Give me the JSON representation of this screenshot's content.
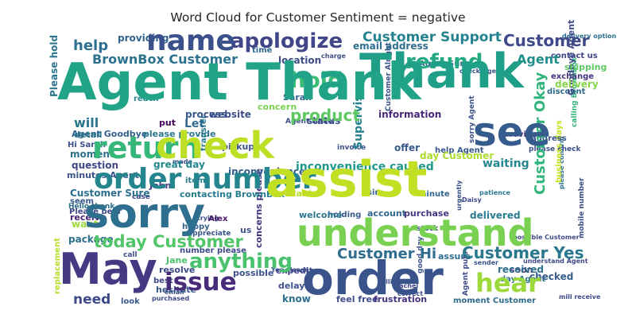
{
  "chart_data": {
    "type": "wordcloud",
    "title": "Word Cloud for Customer Sentiment = negative",
    "words": [
      {
        "text": "Agent Thank",
        "color": "#20a386"
      },
      {
        "text": "assist",
        "color": "#c2df23"
      },
      {
        "text": "check",
        "color": "#bddf26"
      },
      {
        "text": "sorry",
        "color": "#2e6e8e"
      },
      {
        "text": "order",
        "color": "#3a538b"
      },
      {
        "text": "May",
        "color": "#443a83"
      },
      {
        "text": "name",
        "color": "#3b518b"
      },
      {
        "text": "order number",
        "color": "#25858e"
      },
      {
        "text": "understand",
        "color": "#7ad151"
      },
      {
        "text": "Thank",
        "color": "#1f9f88"
      },
      {
        "text": "see",
        "color": "#365c8d"
      },
      {
        "text": "return",
        "color": "#35b779"
      },
      {
        "text": "apologize",
        "color": "#404688"
      },
      {
        "text": "refund",
        "color": "#24aa83"
      },
      {
        "text": "hold",
        "color": "#3bbb75"
      },
      {
        "text": "issue",
        "color": "#472c7a"
      },
      {
        "text": "anything",
        "color": "#4ac16d"
      },
      {
        "text": "hear",
        "color": "#9dd93b"
      },
      {
        "text": "today Customer",
        "color": "#52c569"
      },
      {
        "text": "Customer Support",
        "color": "#26828e"
      },
      {
        "text": "Customer",
        "color": "#3e4989"
      },
      {
        "text": "BrownBox Customer",
        "color": "#2c728e"
      },
      {
        "text": "Customer Hi",
        "color": "#2e6d8e"
      },
      {
        "text": "Customer Yes",
        "color": "#2a788e"
      },
      {
        "text": "help",
        "color": "#2d708e"
      },
      {
        "text": "Agent",
        "color": "#21908d"
      },
      {
        "text": "Let",
        "color": "#31688e"
      },
      {
        "text": "will",
        "color": "#2c738e"
      },
      {
        "text": "need",
        "color": "#3e4a89"
      },
      {
        "text": "product",
        "color": "#5ec962"
      },
      {
        "text": "Customer Okay",
        "color": "#31b57b"
      },
      {
        "text": "inconvenience caused",
        "color": "#1f988b"
      },
      {
        "text": "Goodbye Agent",
        "color": "#3e4c8a"
      },
      {
        "text": "email address",
        "color": "#2e6e8e"
      },
      {
        "text": "providing",
        "color": "#32648e"
      },
      {
        "text": "location",
        "color": "#3d4d8a"
      },
      {
        "text": "Please hold",
        "color": "#2b758e"
      },
      {
        "text": "Sarah",
        "color": "#34608d"
      },
      {
        "text": "Hi Sarah",
        "color": "#3b518b"
      },
      {
        "text": "Agent Goodbye",
        "color": "#355f8d"
      },
      {
        "text": "please provide",
        "color": "#2a778e"
      },
      {
        "text": "great day",
        "color": "#23888e"
      },
      {
        "text": "process",
        "color": "#38598c"
      },
      {
        "text": "website",
        "color": "#3c4f8a"
      },
      {
        "text": "information",
        "color": "#482878"
      },
      {
        "text": "put",
        "color": "#440154"
      },
      {
        "text": "status",
        "color": "#3c4f8a"
      },
      {
        "text": "Supervisor",
        "color": "#26818e"
      },
      {
        "text": "concern",
        "color": "#7ad151"
      },
      {
        "text": "delivery",
        "color": "#86d549"
      },
      {
        "text": "discount",
        "color": "#2f6b8e"
      },
      {
        "text": "exchange",
        "color": "#46327e"
      },
      {
        "text": "shipping",
        "color": "#5ec962"
      },
      {
        "text": "moment",
        "color": "#2c728e"
      },
      {
        "text": "question",
        "color": "#3f4788"
      },
      {
        "text": "inconvenience",
        "color": "#355e8d"
      },
      {
        "text": "Customer Sure",
        "color": "#2d708e"
      },
      {
        "text": "John",
        "color": "#443a83"
      },
      {
        "text": "available",
        "color": "#b5de2b"
      },
      {
        "text": "welcome",
        "color": "#2a768e"
      },
      {
        "text": "account",
        "color": "#31678e"
      },
      {
        "text": "purchase",
        "color": "#453581"
      },
      {
        "text": "delivered",
        "color": "#287d8e"
      },
      {
        "text": "receive",
        "color": "#482173"
      },
      {
        "text": "want",
        "color": "#9fda3a"
      },
      {
        "text": "package",
        "color": "#2d708e"
      },
      {
        "text": "Alex",
        "color": "#481769"
      },
      {
        "text": "Jane",
        "color": "#4ac16d"
      },
      {
        "text": "detail",
        "color": "#2b758e"
      },
      {
        "text": "offer",
        "color": "#38598c"
      },
      {
        "text": "day Customer",
        "color": "#addc30"
      },
      {
        "text": "received",
        "color": "#2e6f8e"
      },
      {
        "text": "checked",
        "color": "#365d8d"
      },
      {
        "text": "soon",
        "color": "#472d7b"
      },
      {
        "text": "day Agent",
        "color": "#2c728e"
      },
      {
        "text": "know",
        "color": "#2e6e8e"
      },
      {
        "text": "feel free",
        "color": "#3d4e8a"
      },
      {
        "text": "frustration",
        "color": "#46307e"
      },
      {
        "text": "moment Customer",
        "color": "#2e6d8e"
      },
      {
        "text": "resolve",
        "color": "#3e4989"
      },
      {
        "text": "possible",
        "color": "#3b518b"
      },
      {
        "text": "delay",
        "color": "#3b528b"
      },
      {
        "text": "expedite",
        "color": "#404688"
      },
      {
        "text": "concerns please",
        "color": "#46337f"
      },
      {
        "text": "holding",
        "color": "#38598c"
      },
      {
        "text": "waiting",
        "color": "#24868e"
      },
      {
        "text": "contacting BrownBox",
        "color": "#287c8e"
      },
      {
        "text": "mobile number",
        "color": "#3d4d8a"
      },
      {
        "text": "business days",
        "color": "#c8e020"
      },
      {
        "text": "pickup",
        "color": "#3b528b"
      },
      {
        "text": "minutes Agent",
        "color": "#3a538b"
      },
      {
        "text": "item",
        "color": "#277e8e"
      },
      {
        "text": "hesitate",
        "color": "#38588c"
      },
      {
        "text": "best",
        "color": "#3e4989"
      },
      {
        "text": "look",
        "color": "#38598c"
      },
      {
        "text": "calling BrownBox",
        "color": "#31b57b"
      },
      {
        "text": "reach",
        "color": "#25848e"
      },
      {
        "text": "transfer",
        "color": "#2a788e"
      },
      {
        "text": "assure",
        "color": "#2e6e8e"
      },
      {
        "text": "Please bear",
        "color": "#3f4889"
      },
      {
        "text": "Hello thank",
        "color": "#2c718e"
      },
      {
        "text": "seem",
        "color": "#38588c"
      },
      {
        "text": "happy",
        "color": "#33638d"
      },
      {
        "text": "appreciate",
        "color": "#3a548c"
      },
      {
        "text": "number please",
        "color": "#3e4a89"
      },
      {
        "text": "replacement",
        "color": "#b5de2b"
      },
      {
        "text": "minute",
        "color": "#31668e"
      },
      {
        "text": "sir",
        "color": "#34618d"
      },
      {
        "text": "case",
        "color": "#3f4788"
      },
      {
        "text": "contact us",
        "color": "#404588"
      },
      {
        "text": "Agent Sure",
        "color": "#2c718e"
      },
      {
        "text": "time",
        "color": "#31678e"
      },
      {
        "text": "us",
        "color": "#3a538b"
      },
      {
        "text": "Agent Hello",
        "color": "#3d4e8a"
      },
      {
        "text": "help Agent",
        "color": "#38598c"
      },
      {
        "text": "please check",
        "color": "#3d4e8a"
      },
      {
        "text": "address",
        "color": "#3a548c"
      },
      {
        "text": "Customer Alright",
        "color": "#3b528b"
      },
      {
        "text": "delivery option",
        "color": "#2e6e8e"
      },
      {
        "text": "Agent puts",
        "color": "#3e4c8a"
      },
      {
        "text": "provide",
        "color": "#472c7a"
      },
      {
        "text": "call",
        "color": "#3c508b"
      },
      {
        "text": "stock",
        "color": "#3f4889"
      },
      {
        "text": "invoice",
        "color": "#3b528b"
      },
      {
        "text": "calling",
        "color": "#3c4f8a"
      },
      {
        "text": "good day",
        "color": "#3b528b"
      },
      {
        "text": "sorry Agent",
        "color": "#3b528b"
      },
      {
        "text": "please confirm",
        "color": "#2c718e"
      },
      {
        "text": "Rachel",
        "color": "#404688"
      },
      {
        "text": "correct",
        "color": "#3e4a89"
      },
      {
        "text": "mill receive",
        "color": "#3e4989"
      },
      {
        "text": "urgently",
        "color": "#3b518b"
      },
      {
        "text": "patience",
        "color": "#2a788e"
      },
      {
        "text": "email",
        "color": "#3c4f8a"
      },
      {
        "text": "purchased",
        "color": "#3f4889"
      },
      {
        "text": "Yes please",
        "color": "#3b528b"
      },
      {
        "text": "sender",
        "color": "#3b528b"
      },
      {
        "text": "Daisy",
        "color": "#3f4788"
      },
      {
        "text": "possible Customer",
        "color": "#3e4c8a"
      },
      {
        "text": "trying",
        "color": "#3d4e8a"
      },
      {
        "text": "made",
        "color": "#3c508b"
      },
      {
        "text": "understand Agent",
        "color": "#3e4989"
      },
      {
        "text": "check Agent",
        "color": "#3b528b"
      },
      {
        "text": "charge",
        "color": "#3c508b"
      }
    ]
  }
}
